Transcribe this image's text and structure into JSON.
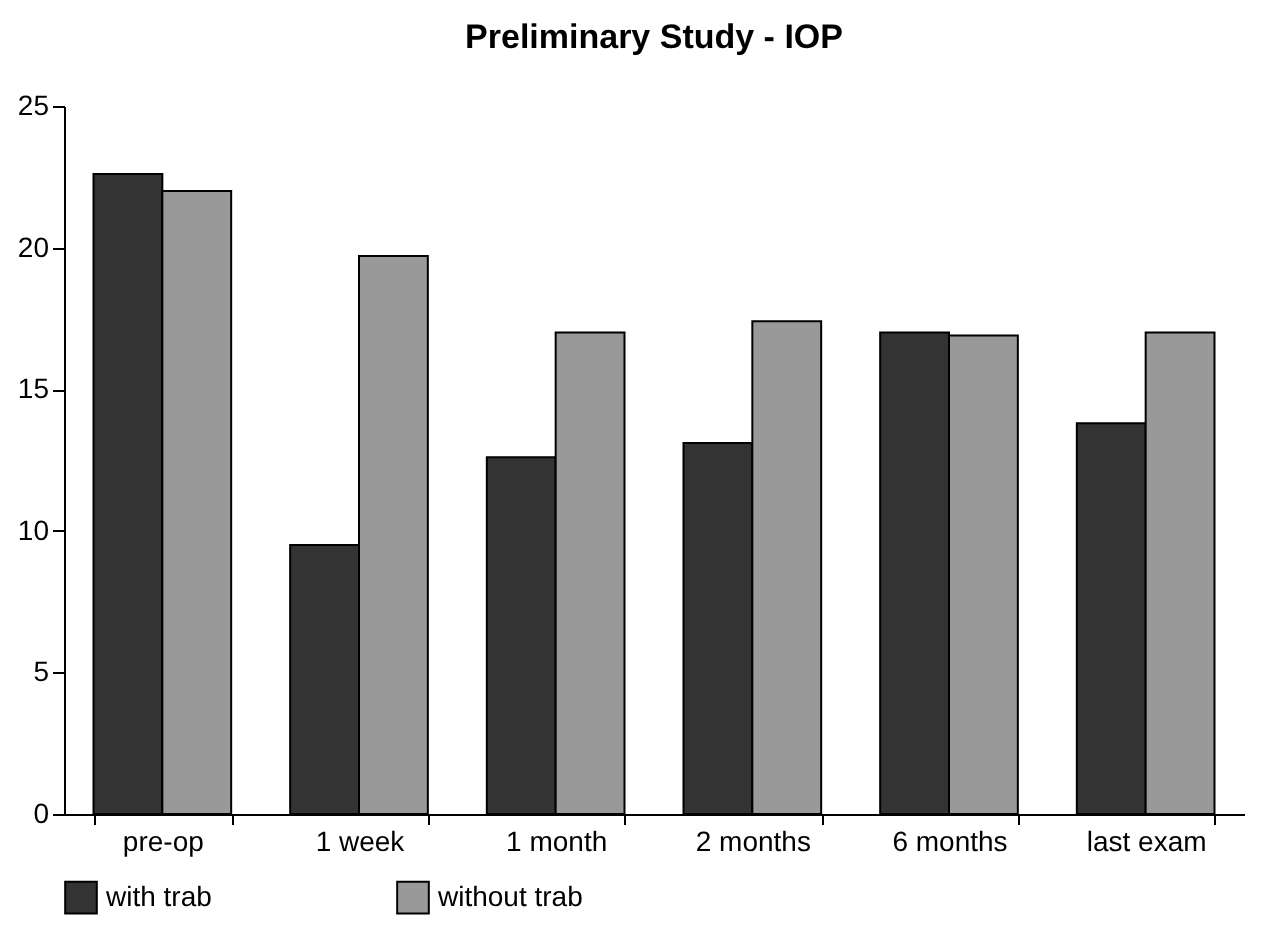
{
  "chart_data": {
    "type": "bar",
    "title": "Preliminary Study - IOP",
    "categories": [
      "pre-op",
      "1 week",
      "1 month",
      "2 months",
      "6 months",
      "last exam"
    ],
    "series": [
      {
        "name": "with trab",
        "color": "#333333",
        "values": [
          22.6,
          9.5,
          12.6,
          13.1,
          17.0,
          13.8
        ]
      },
      {
        "name": "without trab",
        "color": "#999999",
        "values": [
          22.0,
          19.7,
          17.0,
          17.4,
          16.9,
          17.0
        ]
      }
    ],
    "ylim": [
      0,
      25
    ],
    "yticks": [
      0,
      5,
      10,
      15,
      20,
      25
    ],
    "grid": false,
    "legend": "bottom"
  }
}
